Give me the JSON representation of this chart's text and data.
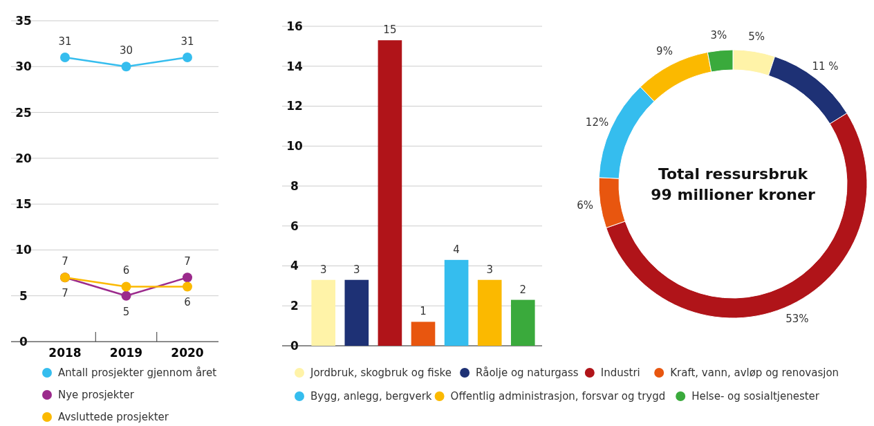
{
  "chart_data": [
    {
      "type": "line",
      "categories": [
        "2018",
        "2019",
        "2020"
      ],
      "ylim": [
        0,
        35
      ],
      "yticks": [
        0,
        5,
        10,
        15,
        20,
        25,
        30,
        35
      ],
      "grid": "y",
      "legend": "bottom",
      "marker": "circle",
      "data_labels": true,
      "series": [
        {
          "name": "Antall prosjekter gjennom året",
          "color": "#35bdee",
          "values": [
            31,
            30,
            31
          ]
        },
        {
          "name": "Nye prosjekter",
          "color": "#9b2a8c",
          "values": [
            7,
            5,
            7
          ]
        },
        {
          "name": "Avsluttede prosjekter",
          "color": "#fbb900",
          "values": [
            7,
            6,
            6
          ]
        }
      ]
    },
    {
      "type": "bar",
      "categories": [
        null,
        null,
        null,
        null,
        null,
        null,
        null
      ],
      "values": [
        3.3,
        3.3,
        15.3,
        1.2,
        4.3,
        3.3,
        2.3
      ],
      "value_labels": [
        "3",
        "3",
        "15",
        "1",
        "4",
        "3",
        "2"
      ],
      "colors": [
        "#fff3a8",
        "#1e3175",
        "#b01419",
        "#e8560f",
        "#35bdee",
        "#fbb900",
        "#3aaa3c"
      ],
      "ylim": [
        0,
        16
      ],
      "yticks": [
        0,
        2,
        4,
        6,
        8,
        10,
        12,
        14,
        16
      ],
      "grid": "y"
    },
    {
      "type": "donut",
      "categories": [
        "Jordbruk, skogbruk og fiske",
        "Råolje og naturgass",
        "Industri",
        "Kraft, vann, avløp og renovasjon",
        "Bygg, anlegg, bergverk",
        "Offentlig administrasjon, forsvar og trygd",
        "Helse- og sosialtjenester"
      ],
      "values": [
        5,
        11,
        53,
        6,
        12,
        9,
        3
      ],
      "value_labels": [
        "5%",
        "11 %",
        "53%",
        "6%",
        "12%",
        "9%",
        "3%"
      ],
      "colors": [
        "#fff3a8",
        "#1e3175",
        "#b01419",
        "#e8560f",
        "#35bdee",
        "#fbb900",
        "#3aaa3c"
      ],
      "legend": "bottom",
      "annotations": [
        "Total ressursbruk",
        "99 millioner kroner"
      ]
    }
  ]
}
